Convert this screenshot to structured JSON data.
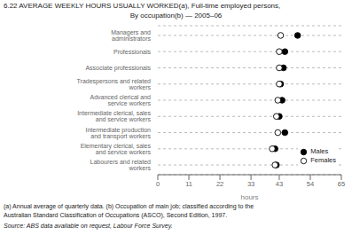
{
  "chart_data": {
    "type": "dot",
    "title": "6.22  AVERAGE WEEKLY HOURS USUALLY WORKED(a), Full-time employed persons,",
    "subtitle": "By occupation(b) — 2005–06",
    "categories": [
      "Managers and administrators",
      "Professionals",
      "Associate professionals",
      "Tradespersons and related workers",
      "Advanced clerical and service workers",
      "Intermediate clerical, sales and service workers",
      "Intermediate production and transport workers",
      "Elementary clerical, sales and service workers",
      "Labourers and related workers"
    ],
    "series": [
      {
        "name": "Males",
        "color": "#000000",
        "marker": "circle",
        "values": [
          49.5,
          45.0,
          44.5,
          43.5,
          44.0,
          43.0,
          45.0,
          41.5,
          42.0
        ]
      },
      {
        "name": "Females",
        "color": "#ffffff",
        "marker": "circle",
        "values": [
          43.5,
          43.0,
          43.0,
          43.0,
          42.5,
          42.0,
          42.5,
          40.5,
          41.5
        ]
      }
    ],
    "xlabel": "hours",
    "xlim": [
      0,
      65
    ],
    "xticks": [
      0,
      11,
      22,
      33,
      43,
      54,
      65
    ],
    "grid": true,
    "legend": "lower right",
    "annotations": [
      "(a) Annual average of quarterly data. (b) Occupation of main job; classified according to the",
      "Australian Standard Classification of Occupations (ASCO), Second Edition, 1997.",
      "Source: ABS data available on request, Labour Force Survey."
    ]
  }
}
